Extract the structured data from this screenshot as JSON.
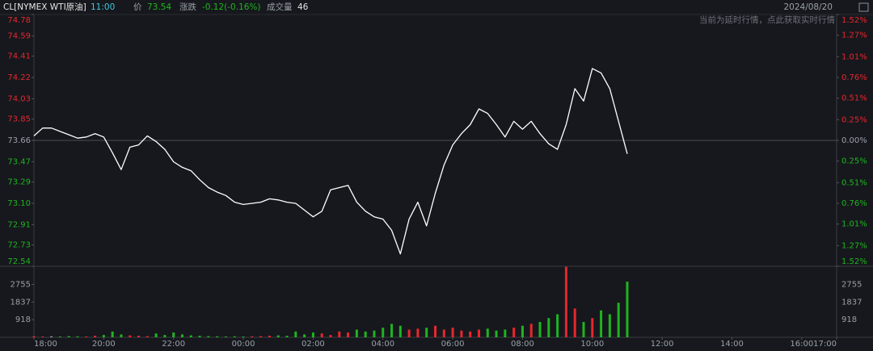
{
  "chart_data": {
    "type": "line",
    "title": "CL[NYMEX WTI原油]",
    "quote": {
      "time": "11:00",
      "price_label": "价",
      "price": 73.54,
      "change_label": "涨跌",
      "change": "-0.12(-0.16%)",
      "volume_label": "成交量",
      "volume": 46
    },
    "date": "2024/08/20",
    "notice": "当前为延时行情，点此获取实时行情",
    "base": 73.66,
    "line_color": "#ffffff",
    "up_color": "#e8262d",
    "down_color": "#1fb41f",
    "flat_color": "#9aa0a8",
    "xlim": [
      0,
      23
    ],
    "xticks": [
      {
        "value": 0,
        "label": "18:00"
      },
      {
        "value": 2,
        "label": "20:00"
      },
      {
        "value": 4,
        "label": "22:00"
      },
      {
        "value": 6,
        "label": "00:00"
      },
      {
        "value": 8,
        "label": "02:00"
      },
      {
        "value": 10,
        "label": "04:00"
      },
      {
        "value": 12,
        "label": "06:00"
      },
      {
        "value": 14,
        "label": "08:00"
      },
      {
        "value": 16,
        "label": "10:00"
      },
      {
        "value": 18,
        "label": "12:00"
      },
      {
        "value": 20,
        "label": "14:00"
      },
      {
        "value": 22,
        "label": "16:00"
      },
      {
        "value": 23,
        "label": "17:00"
      }
    ],
    "ylim": [
      72.54,
      74.78
    ],
    "yticks": [
      74.78,
      74.59,
      74.41,
      74.22,
      74.03,
      73.85,
      73.66,
      73.47,
      73.29,
      {
        "value": 73.1,
        "label": "73.10"
      },
      72.91,
      72.73,
      72.54
    ],
    "y2lim": [
      -1.52,
      1.52
    ],
    "y2ticks": [
      {
        "value": 1.52,
        "label": "1.52%"
      },
      {
        "value": 1.27,
        "label": "1.27%"
      },
      {
        "value": 1.01,
        "label": "1.01%"
      },
      {
        "value": 0.76,
        "label": "0.76%"
      },
      {
        "value": 0.51,
        "label": "0.51%"
      },
      {
        "value": 0.25,
        "label": "0.25%"
      },
      {
        "value": 0,
        "label": "0.00%"
      },
      {
        "value": -0.25,
        "label": "0.25%"
      },
      {
        "value": -0.51,
        "label": "0.51%"
      },
      {
        "value": -0.76,
        "label": "0.76%"
      },
      {
        "value": -1.01,
        "label": "1.01%"
      },
      {
        "value": -1.27,
        "label": "1.27%"
      },
      {
        "value": -1.52,
        "label": "1.52%"
      }
    ],
    "x": [
      0,
      0.25,
      0.5,
      0.75,
      1,
      1.25,
      1.5,
      1.75,
      2,
      2.25,
      2.5,
      2.75,
      3,
      3.25,
      3.5,
      3.75,
      4,
      4.25,
      4.5,
      4.75,
      5,
      5.25,
      5.5,
      5.75,
      6,
      6.25,
      6.5,
      6.75,
      7,
      7.25,
      7.5,
      7.75,
      8,
      8.25,
      8.5,
      8.75,
      9,
      9.25,
      9.5,
      9.75,
      10,
      10.25,
      10.5,
      10.75,
      11,
      11.25,
      11.5,
      11.75,
      12,
      12.25,
      12.5,
      12.75,
      13,
      13.25,
      13.5,
      13.75,
      14,
      14.25,
      14.5,
      14.75,
      15,
      15.25,
      15.5,
      15.75,
      16,
      16.25,
      16.5,
      16.75,
      17
    ],
    "values": [
      73.7,
      73.77,
      73.77,
      73.74,
      73.71,
      73.68,
      73.69,
      73.72,
      73.69,
      73.55,
      73.4,
      73.6,
      73.62,
      73.7,
      73.65,
      73.58,
      73.47,
      73.42,
      73.39,
      73.31,
      73.24,
      73.2,
      73.17,
      73.11,
      73.09,
      73.1,
      73.11,
      73.14,
      73.13,
      73.11,
      73.1,
      73.04,
      72.98,
      73.03,
      73.22,
      73.24,
      73.26,
      73.11,
      73.03,
      72.98,
      72.96,
      72.86,
      72.65,
      72.96,
      73.11,
      72.9,
      73.19,
      73.44,
      73.62,
      73.72,
      73.8,
      73.94,
      73.9,
      73.8,
      73.69,
      73.83,
      73.76,
      73.83,
      73.72,
      73.63,
      73.58,
      73.8,
      74.12,
      74.01,
      74.3,
      74.26,
      74.12,
      73.83,
      73.54
    ],
    "volume": {
      "ylim": [
        0,
        3700
      ],
      "yticks": [
        918,
        1837,
        2755
      ],
      "values": [
        60,
        40,
        50,
        40,
        60,
        50,
        40,
        80,
        120,
        300,
        150,
        100,
        80,
        60,
        200,
        120,
        250,
        150,
        100,
        80,
        60,
        50,
        40,
        50,
        40,
        50,
        60,
        80,
        100,
        80,
        300,
        150,
        250,
        200,
        120,
        300,
        250,
        400,
        300,
        350,
        500,
        700,
        600,
        400,
        450,
        500,
        600,
        400,
        500,
        350,
        300,
        400,
        450,
        350,
        400,
        500,
        600,
        700,
        800,
        1000,
        1200,
        3670,
        1500,
        800,
        1000,
        1400,
        1200,
        1800,
        2900
      ]
    }
  }
}
